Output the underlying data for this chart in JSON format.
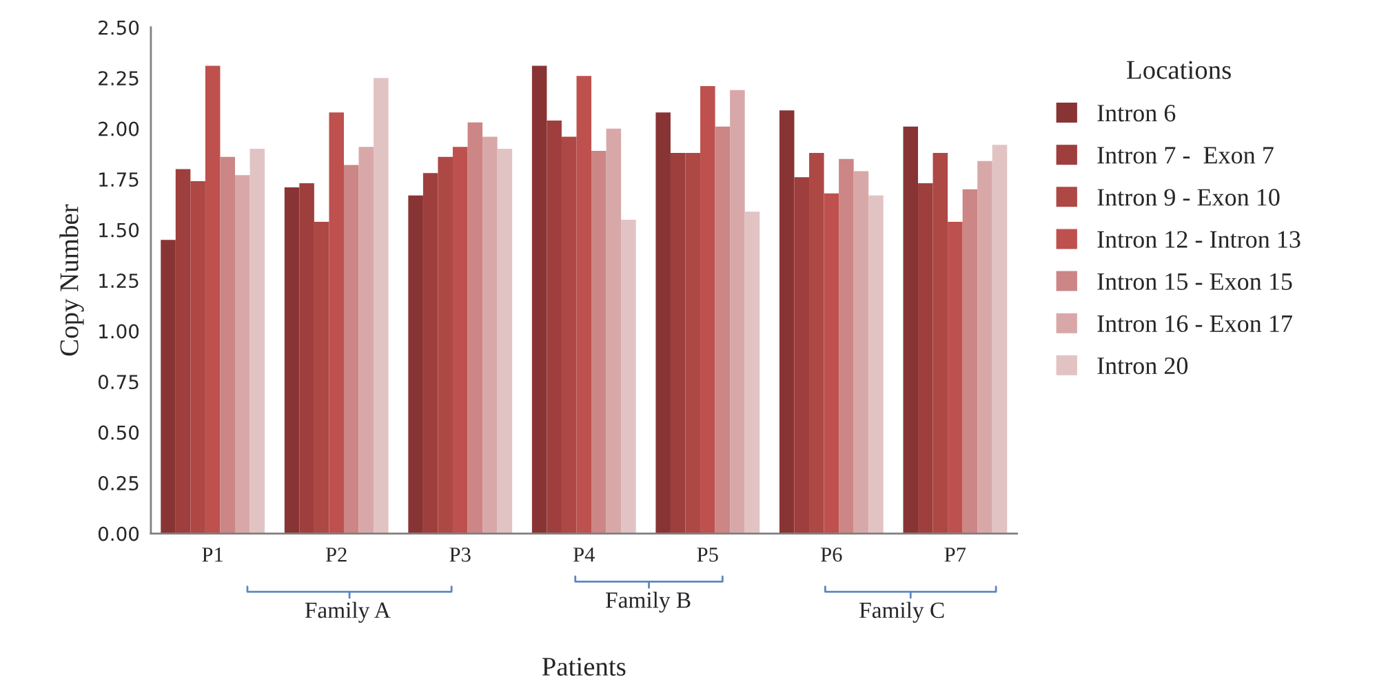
{
  "chart_data": {
    "type": "bar",
    "xlabel": "Patients",
    "ylabel": "Copy Number",
    "legend_title": "Locations",
    "legend": "right",
    "categories": [
      "P1",
      "P2",
      "P3",
      "P4",
      "P5",
      "P6",
      "P7"
    ],
    "series": [
      {
        "name": "Intron 6",
        "color": "#893434",
        "values": [
          1.45,
          1.71,
          1.67,
          2.31,
          2.08,
          2.09,
          2.01
        ]
      },
      {
        "name": "Intron 7 -  Exon 7",
        "color": "#9e3f3d",
        "values": [
          1.8,
          1.73,
          1.78,
          2.04,
          1.88,
          1.76,
          1.73
        ]
      },
      {
        "name": "Intron 9 - Exon 10",
        "color": "#ad4845",
        "values": [
          1.74,
          1.54,
          1.86,
          1.96,
          1.88,
          1.88,
          1.88
        ]
      },
      {
        "name": "Intron 12 - Intron 13",
        "color": "#be514e",
        "values": [
          2.31,
          2.08,
          1.91,
          2.26,
          2.21,
          1.68,
          1.54
        ]
      },
      {
        "name": "Intron 15 - Exon 15",
        "color": "#cc8685",
        "values": [
          1.86,
          1.82,
          2.03,
          1.89,
          2.01,
          1.85,
          1.7
        ]
      },
      {
        "name": "Intron 16 - Exon 17",
        "color": "#d8a8a8",
        "values": [
          1.77,
          1.91,
          1.96,
          2.0,
          2.19,
          1.79,
          1.84
        ]
      },
      {
        "name": "Intron 20",
        "color": "#e2c3c4",
        "values": [
          1.9,
          2.25,
          1.9,
          1.55,
          1.59,
          1.67,
          1.92
        ]
      }
    ],
    "ylim": [
      0,
      2.5
    ],
    "yticks": [
      {
        "value": 0,
        "label": "0.00"
      },
      {
        "value": 0.25,
        "label": "0.25"
      },
      {
        "value": 0.5,
        "label": "0.50"
      },
      {
        "value": 0.75,
        "label": "0.75"
      },
      {
        "value": 1,
        "label": "1.00"
      },
      {
        "value": 1.25,
        "label": "1.25"
      },
      {
        "value": 1.5,
        "label": "1.50"
      },
      {
        "value": 1.75,
        "label": "1.75"
      },
      {
        "value": 2,
        "label": "2.00"
      },
      {
        "value": 2.25,
        "label": "2.25"
      },
      {
        "value": 2.5,
        "label": "2.50"
      }
    ],
    "annotations": [
      "Family A",
      "Family B",
      "Family C"
    ]
  }
}
